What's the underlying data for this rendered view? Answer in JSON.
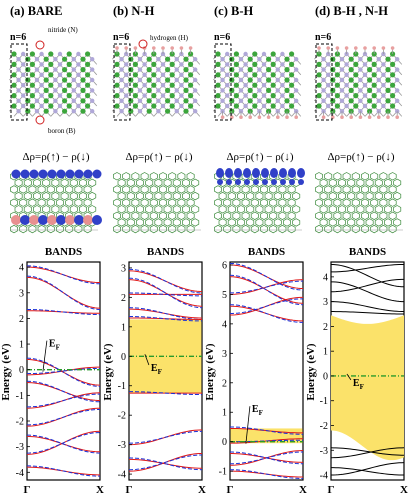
{
  "panels": [
    {
      "label": "(a) BARE",
      "n_label": "n=6",
      "annotations": [
        "nitride (N)",
        "boron (B)"
      ],
      "delta_rho": "Δρ=ρ(↑) − ρ(↓)",
      "bands_title": "BANDS",
      "fermi": "E_F",
      "y_ticks": [
        "-4",
        "-3",
        "-2",
        "-1",
        "0",
        "1",
        "2",
        "3",
        "4"
      ],
      "ylim": [
        -4.3,
        4.2
      ]
    },
    {
      "label": "(b) N-H",
      "n_label": "n=6",
      "annotations": [
        "hydrogen (H)"
      ],
      "delta_rho": "Δρ=ρ(↑) − ρ(↓)",
      "bands_title": "BANDS",
      "fermi": "E_F",
      "y_ticks": [
        "-4",
        "-3",
        "-2",
        "-1",
        "0",
        "1",
        "2",
        "3"
      ],
      "ylim": [
        -4.2,
        3.2
      ]
    },
    {
      "label": "(c) B-H",
      "n_label": "n=6",
      "annotations": [],
      "delta_rho": "Δρ=ρ(↑) − ρ(↓)",
      "bands_title": "BANDS",
      "fermi": "E_F",
      "y_ticks": [
        "-1",
        "0",
        "1",
        "2",
        "3",
        "4",
        "5",
        "6"
      ],
      "ylim": [
        -1.3,
        6.1
      ]
    },
    {
      "label": "(d) B-H , N-H",
      "n_label": "n=6",
      "annotations": [],
      "delta_rho": "Δρ=ρ(↑) − ρ(↓)",
      "bands_title": "BANDS",
      "fermi": "E_F",
      "y_ticks": [
        "-4",
        "-3",
        "-2",
        "-1",
        "0",
        "1",
        "2",
        "3",
        "4"
      ],
      "ylim": [
        -4.2,
        4.6
      ]
    }
  ],
  "y_axis_label": "Energy (eV)",
  "x_ticks": [
    "Γ",
    "X"
  ],
  "colors": {
    "boron": "#3ca53c",
    "nitrogen": "#b0a8d8",
    "hydrogen": "#e8a0a0",
    "spin_up": "#e01818",
    "spin_down": "#1a2fd6",
    "fermi": "#2a9a2a",
    "gap_fill": "#fbe26a",
    "density_red": "#e89090",
    "density_blue": "#3040c8"
  }
}
